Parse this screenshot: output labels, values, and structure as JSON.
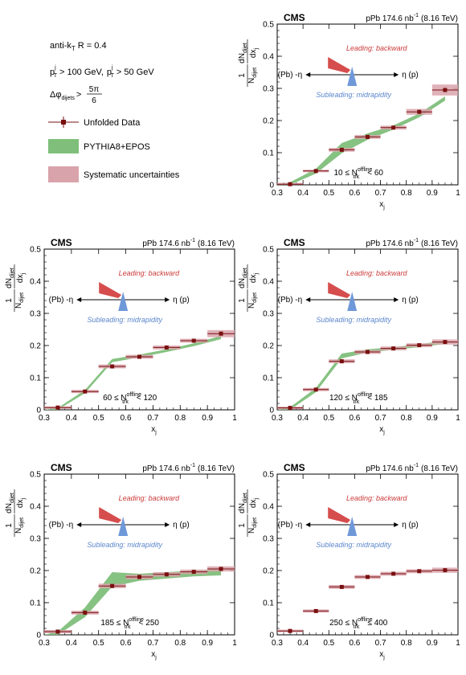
{
  "legend": {
    "jet_algo": "anti-k",
    "jet_algo_sub": "T",
    "radius": "R = 0.4",
    "pt_lead": "p",
    "pt_lead_sup": "j",
    "pt_lead_sub": "T",
    "pt_lead_cut": "> 100 GeV,",
    "pt_sub": "p",
    "pt_sub_sup": "j",
    "pt_sub_sub": "T",
    "pt_sub_cut": "> 50 GeV",
    "dphi": "Δφ",
    "dphi_sub": "dijets",
    "dphi_gt": ">",
    "dphi_num": "5π",
    "dphi_den": "6",
    "data_label": "Unfolded Data",
    "model_label": "PYTHIA8+EPOS",
    "syst_label": "Systematic uncertainties"
  },
  "common": {
    "experiment": "CMS",
    "lumi": "pPb 174.6 nb",
    "lumi_sup": "-1",
    "energy": "(8.16 TeV)",
    "xlabel": "x",
    "xlabel_sub": "j",
    "ylabel_one": "1",
    "ylabel_n": "N",
    "ylabel_n_sub": "dijet",
    "ylabel_dn": "dN",
    "ylabel_dn_sub": "dijet",
    "ylabel_dx": "dx",
    "ylabel_dx_sub": "j",
    "leading": "Leading: backward",
    "subleading": "Subleading: midrapidity",
    "pb_label": "(Pb) -η",
    "p_label": "η (p)",
    "x_ticks": [
      "0.3",
      "0.4",
      "0.5",
      "0.6",
      "0.7",
      "0.8",
      "0.9",
      "1"
    ],
    "y_ticks": [
      "0",
      "0.1",
      "0.2",
      "0.3",
      "0.4",
      "0.5"
    ],
    "xlim": [
      0.3,
      1.0
    ],
    "ylim": [
      0,
      0.5
    ]
  },
  "colors": {
    "data": "#7a1010",
    "model": "#7fbf7b",
    "syst": "#d9a3ab",
    "leading_wedge": "#d64d4d",
    "subleading_wedge": "#6f98d8"
  },
  "chart_data": [
    {
      "type": "line",
      "range_label": "10 ≤ N",
      "range_sup": "offline",
      "range_sub": "trk",
      "range_tail": "< 60",
      "x": [
        0.35,
        0.45,
        0.55,
        0.65,
        0.75,
        0.85,
        0.95
      ],
      "series": [
        {
          "name": "Unfolded Data",
          "values": [
            0.002,
            0.043,
            0.109,
            0.149,
            0.178,
            0.227,
            0.295
          ]
        },
        {
          "name": "PYTHIA8+EPOS",
          "low": [
            0.0,
            0.035,
            0.098,
            0.14,
            0.172,
            0.21,
            0.262
          ],
          "high": [
            0.008,
            0.05,
            0.13,
            0.16,
            0.185,
            0.222,
            0.275
          ]
        },
        {
          "name": "Systematic uncertainties",
          "low": [
            0.0,
            0.039,
            0.103,
            0.143,
            0.172,
            0.218,
            0.278
          ],
          "high": [
            0.006,
            0.047,
            0.115,
            0.155,
            0.184,
            0.236,
            0.312
          ]
        }
      ]
    },
    {
      "type": "line",
      "range_label": "60 ≤ N",
      "range_sup": "offline",
      "range_sub": "trk",
      "range_tail": "< 120",
      "x": [
        0.35,
        0.45,
        0.55,
        0.65,
        0.75,
        0.85,
        0.95
      ],
      "series": [
        {
          "name": "Unfolded Data",
          "values": [
            0.007,
            0.057,
            0.135,
            0.165,
            0.194,
            0.215,
            0.237
          ]
        },
        {
          "name": "PYTHIA8+EPOS",
          "low": [
            0.0,
            0.052,
            0.148,
            0.163,
            0.18,
            0.198,
            0.22
          ],
          "high": [
            0.006,
            0.062,
            0.158,
            0.172,
            0.188,
            0.207,
            0.23
          ]
        },
        {
          "name": "Systematic uncertainties",
          "low": [
            0.003,
            0.052,
            0.129,
            0.159,
            0.188,
            0.209,
            0.226
          ],
          "high": [
            0.011,
            0.062,
            0.141,
            0.171,
            0.2,
            0.221,
            0.248
          ]
        }
      ]
    },
    {
      "type": "line",
      "range_label": "120 ≤ N",
      "range_sup": "offline",
      "range_sub": "trk",
      "range_tail": "< 185",
      "x": [
        0.35,
        0.45,
        0.55,
        0.65,
        0.75,
        0.85,
        0.95
      ],
      "series": [
        {
          "name": "Unfolded Data",
          "values": [
            0.006,
            0.063,
            0.151,
            0.18,
            0.191,
            0.201,
            0.211
          ]
        },
        {
          "name": "PYTHIA8+EPOS",
          "low": [
            0.0,
            0.055,
            0.16,
            0.178,
            0.187,
            0.195,
            0.205
          ],
          "high": [
            0.008,
            0.068,
            0.175,
            0.188,
            0.195,
            0.204,
            0.215
          ]
        },
        {
          "name": "Systematic uncertainties",
          "low": [
            0.002,
            0.058,
            0.145,
            0.174,
            0.185,
            0.195,
            0.203
          ],
          "high": [
            0.01,
            0.068,
            0.157,
            0.186,
            0.197,
            0.207,
            0.219
          ]
        }
      ]
    },
    {
      "type": "line",
      "range_label": "185 ≤ N",
      "range_sup": "offline",
      "range_sub": "trk",
      "range_tail": "< 250",
      "x": [
        0.35,
        0.45,
        0.55,
        0.65,
        0.75,
        0.85,
        0.95
      ],
      "series": [
        {
          "name": "Unfolded Data",
          "values": [
            0.01,
            0.069,
            0.152,
            0.18,
            0.188,
            0.196,
            0.205
          ]
        },
        {
          "name": "PYTHIA8+EPOS",
          "low": [
            0.0,
            0.055,
            0.15,
            0.168,
            0.175,
            0.182,
            0.185
          ],
          "high": [
            0.01,
            0.085,
            0.195,
            0.19,
            0.195,
            0.2,
            0.205
          ]
        },
        {
          "name": "Systematic uncertainties",
          "low": [
            0.005,
            0.063,
            0.145,
            0.173,
            0.181,
            0.189,
            0.197
          ],
          "high": [
            0.015,
            0.075,
            0.159,
            0.187,
            0.195,
            0.203,
            0.213
          ]
        }
      ]
    },
    {
      "type": "line",
      "range_label": "250 ≤ N",
      "range_sup": "offline",
      "range_sub": "trk",
      "range_tail": "≤ 400",
      "x": [
        0.35,
        0.45,
        0.55,
        0.65,
        0.75,
        0.85,
        0.95
      ],
      "series": [
        {
          "name": "Unfolded Data",
          "values": [
            0.012,
            0.074,
            0.149,
            0.18,
            0.19,
            0.198,
            0.201
          ]
        },
        {
          "name": "Systematic uncertainties",
          "low": [
            0.008,
            0.069,
            0.143,
            0.174,
            0.184,
            0.192,
            0.193
          ],
          "high": [
            0.016,
            0.079,
            0.155,
            0.186,
            0.196,
            0.204,
            0.209
          ]
        }
      ]
    }
  ]
}
